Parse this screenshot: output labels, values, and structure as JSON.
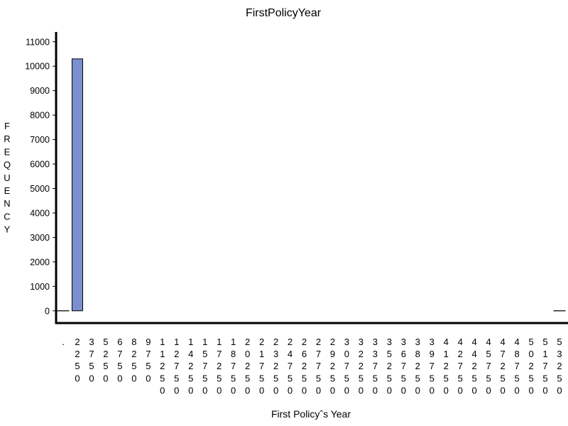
{
  "chart_data": {
    "type": "bar",
    "title": "FirstPolicyYear",
    "xlabel": "First Policyˆs Year",
    "ylabel": "FREQUENCY",
    "ylim": [
      -500,
      11400
    ],
    "yticks": [
      0,
      1000,
      2000,
      3000,
      4000,
      5000,
      6000,
      7000,
      8000,
      9000,
      10000,
      11000
    ],
    "categories": [
      ".",
      "2250",
      "3750",
      "5250",
      "6750",
      "8250",
      "9750",
      "11250",
      "12750",
      "14250",
      "15750",
      "17250",
      "18750",
      "20250",
      "21750",
      "23250",
      "24750",
      "26250",
      "27750",
      "29250",
      "30750",
      "32250",
      "33750",
      "35250",
      "36750",
      "38250",
      "39750",
      "41250",
      "42750",
      "44250",
      "45750",
      "47250",
      "48750",
      "50250",
      "51750",
      "53250"
    ],
    "values": [
      25,
      10300,
      0,
      0,
      0,
      0,
      0,
      0,
      0,
      0,
      0,
      0,
      0,
      0,
      0,
      0,
      0,
      0,
      0,
      0,
      0,
      0,
      0,
      0,
      0,
      0,
      0,
      0,
      0,
      0,
      0,
      0,
      0,
      0,
      0,
      25
    ],
    "grid": false,
    "legend": "none",
    "colors": {
      "bar": "#7b8fce",
      "outline": "#000000"
    }
  }
}
